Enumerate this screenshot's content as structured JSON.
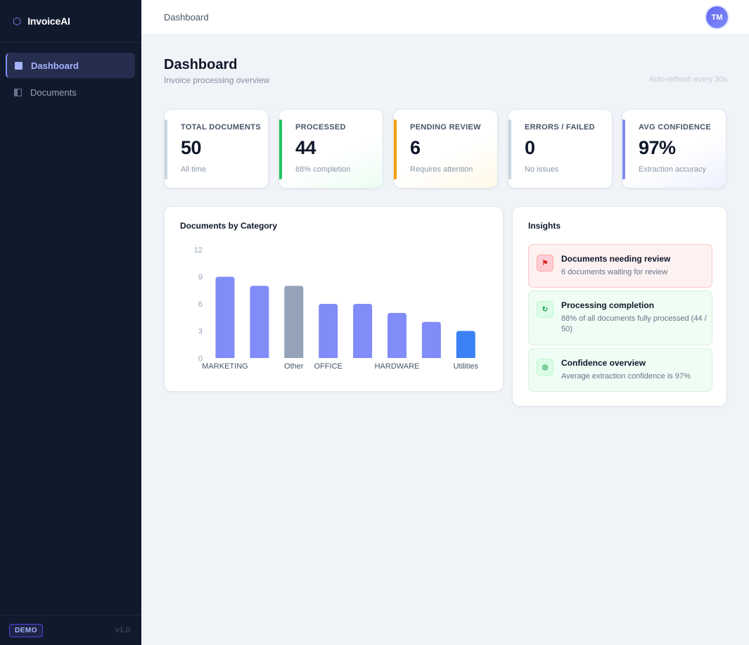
{
  "brand": {
    "name": "InvoiceAI"
  },
  "sidebar": {
    "items": [
      {
        "label": "Dashboard",
        "active": true
      },
      {
        "label": "Documents",
        "active": false
      }
    ],
    "footer": {
      "badge": "DEMO",
      "version": "v1.0"
    }
  },
  "topbar": {
    "breadcrumb": "Dashboard",
    "avatar_initials": "TM"
  },
  "page": {
    "title": "Dashboard",
    "subtitle": "Invoice processing overview",
    "auto_refresh": "Auto-refresh every 30s"
  },
  "stats": [
    {
      "label": "TOTAL DOCUMENTS",
      "value": "50",
      "sub": "All time",
      "accent": "#cbd5e1"
    },
    {
      "label": "PROCESSED",
      "value": "44",
      "sub": "88% completion",
      "accent": "#22c55e"
    },
    {
      "label": "PENDING REVIEW",
      "value": "6",
      "sub": "Requires attention",
      "accent": "#f59e0b"
    },
    {
      "label": "ERRORS / FAILED",
      "value": "0",
      "sub": "No issues",
      "accent": "#cbd5e1"
    },
    {
      "label": "AVG CONFIDENCE",
      "value": "97%",
      "sub": "Extraction accuracy",
      "accent": "#818cf8"
    }
  ],
  "chart_card": {
    "title": "Documents by Category"
  },
  "chart_data": {
    "type": "bar",
    "categories": [
      "MARKETING",
      "",
      "Other",
      "OFFICE",
      "",
      "HARDWARE",
      "",
      "Utilities"
    ],
    "values": [
      9,
      8,
      8,
      6,
      6,
      5,
      4,
      3
    ],
    "bar_colors": [
      "#818cf8",
      "#818cf8",
      "#94a3b8",
      "#818cf8",
      "#818cf8",
      "#818cf8",
      "#818cf8",
      "#3b82f6"
    ],
    "ylim": [
      0,
      12
    ],
    "yticks": [
      0,
      3,
      6,
      9,
      12
    ],
    "grid": false
  },
  "insights": {
    "title": "Insights",
    "items": [
      {
        "icon": "flag-icon",
        "glyph": "⚑",
        "tone": "red",
        "title": "Documents needing review",
        "body": "6 documents waiting for review"
      },
      {
        "icon": "refresh-icon",
        "glyph": "↻",
        "tone": "green",
        "title": "Processing completion",
        "body": "88% of all documents fully processed (44 / 50)"
      },
      {
        "icon": "target-icon",
        "glyph": "◎",
        "tone": "green",
        "title": "Confidence overview",
        "body": "Average extraction confidence is 97%"
      }
    ]
  }
}
